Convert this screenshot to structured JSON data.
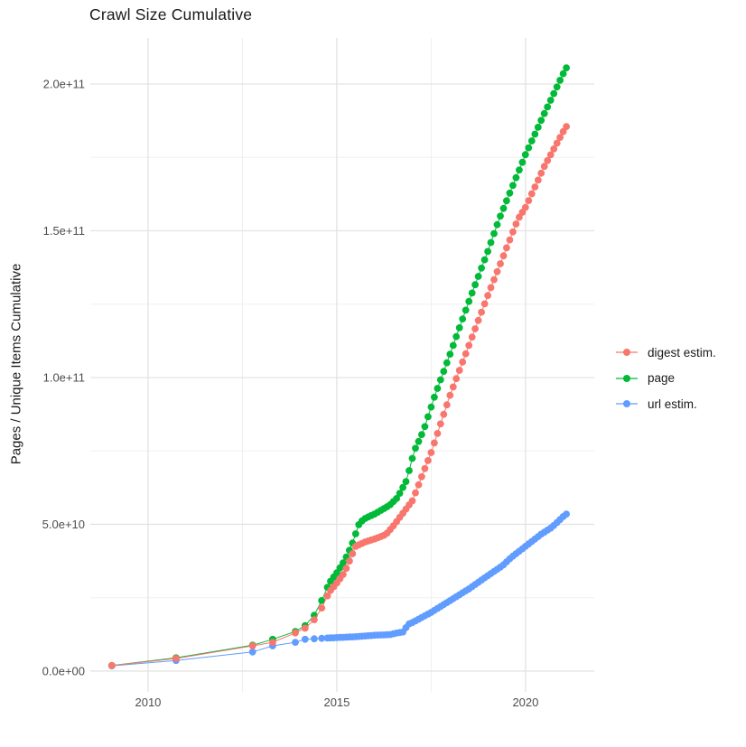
{
  "title": "Crawl Size Cumulative",
  "chart_data": {
    "type": "scatter",
    "title": "Crawl Size Cumulative",
    "xlabel": "",
    "ylabel": "Pages / Unique Items Cumulative",
    "legend_position": "right",
    "grid": "major+minor",
    "background": "#ffffff",
    "xlim": [
      2008.47,
      2021.82
    ],
    "ylim": [
      -7100000000.0,
      215700000000.0
    ],
    "x_ticks": [
      {
        "value": 2010,
        "label": "2010"
      },
      {
        "value": 2015,
        "label": "2015"
      },
      {
        "value": 2020,
        "label": "2020"
      }
    ],
    "y_ticks": [
      {
        "value": 0,
        "label": "0.0e+00"
      },
      {
        "value": 50000000000.0,
        "label": "5.0e+10"
      },
      {
        "value": 100000000000.0,
        "label": "1.0e+11"
      },
      {
        "value": 150000000000.0,
        "label": "1.5e+11"
      },
      {
        "value": 200000000000.0,
        "label": "2.0e+11"
      }
    ],
    "x_minor_ticks": [
      2012.5,
      2017.5
    ],
    "y_minor_ticks": [
      25000000000.0,
      75000000000.0,
      125000000000.0,
      175000000000.0
    ],
    "point_dates": {
      "sparse": [
        2009.04,
        2010.74,
        2012.77,
        2013.3,
        2013.9,
        2014.16,
        2014.4,
        2014.6
      ],
      "monthly_start": 2014.75,
      "monthly_end": 2021.07,
      "monthly_step": 0.0833
    },
    "series": [
      {
        "name": "digest estim.",
        "color": "#F8766D",
        "anchors": [
          [
            2009.04,
            1900000000.0
          ],
          [
            2010.74,
            4300000000.0
          ],
          [
            2012.77,
            8600000000.0
          ],
          [
            2013.3,
            9800000000.0
          ],
          [
            2013.9,
            13000000000.0
          ],
          [
            2014.16,
            14600000000.0
          ],
          [
            2014.4,
            17500000000.0
          ],
          [
            2014.6,
            21500000000.0
          ],
          [
            2014.8,
            27000000000.0
          ],
          [
            2015.0,
            30000000000.0
          ],
          [
            2015.2,
            33500000000.0
          ],
          [
            2015.5,
            42500000000.0
          ],
          [
            2015.75,
            44000000000.0
          ],
          [
            2016.0,
            45000000000.0
          ],
          [
            2016.3,
            46500000000.0
          ],
          [
            2016.5,
            49500000000.0
          ],
          [
            2016.85,
            55500000000.0
          ],
          [
            2017.0,
            58000000000.0
          ],
          [
            2017.5,
            74500000000.0
          ],
          [
            2018.0,
            94000000000.0
          ],
          [
            2018.5,
            111000000000.0
          ],
          [
            2019.0,
            128000000000.0
          ],
          [
            2019.8,
            154000000000.0
          ],
          [
            2020.0,
            158000000000.0
          ],
          [
            2020.5,
            172000000000.0
          ],
          [
            2021.07,
            185500000000.0
          ]
        ]
      },
      {
        "name": "page",
        "color": "#00BA38",
        "anchors": [
          [
            2009.04,
            1900000000.0
          ],
          [
            2010.74,
            4500000000.0
          ],
          [
            2012.77,
            8800000000.0
          ],
          [
            2013.3,
            10800000000.0
          ],
          [
            2013.9,
            13500000000.0
          ],
          [
            2014.16,
            15500000000.0
          ],
          [
            2014.4,
            19000000000.0
          ],
          [
            2014.6,
            24000000000.0
          ],
          [
            2014.8,
            30000000000.0
          ],
          [
            2015.0,
            33500000000.0
          ],
          [
            2015.2,
            37500000000.0
          ],
          [
            2015.4,
            43000000000.0
          ],
          [
            2015.6,
            50500000000.0
          ],
          [
            2015.75,
            52000000000.0
          ],
          [
            2016.0,
            53500000000.0
          ],
          [
            2016.2,
            55000000000.0
          ],
          [
            2016.4,
            56500000000.0
          ],
          [
            2016.6,
            59000000000.0
          ],
          [
            2016.85,
            65000000000.0
          ],
          [
            2017.05,
            75000000000.0
          ],
          [
            2017.3,
            82000000000.0
          ],
          [
            2017.6,
            94000000000.0
          ],
          [
            2018.0,
            108000000000.0
          ],
          [
            2018.5,
            126000000000.0
          ],
          [
            2019.0,
            143000000000.0
          ],
          [
            2019.3,
            154000000000.0
          ],
          [
            2020.0,
            176000000000.0
          ],
          [
            2020.5,
            190000000000.0
          ],
          [
            2021.07,
            205500000000.0
          ]
        ]
      },
      {
        "name": "url estim.",
        "color": "#619CFF",
        "anchors": [
          [
            2009.04,
            1800000000.0
          ],
          [
            2010.74,
            3600000000.0
          ],
          [
            2012.77,
            6500000000.0
          ],
          [
            2013.3,
            8600000000.0
          ],
          [
            2013.9,
            9800000000.0
          ],
          [
            2014.16,
            10800000000.0
          ],
          [
            2014.4,
            11000000000.0
          ],
          [
            2014.7,
            11200000000.0
          ],
          [
            2015.0,
            11400000000.0
          ],
          [
            2015.5,
            11700000000.0
          ],
          [
            2016.0,
            12200000000.0
          ],
          [
            2016.4,
            12400000000.0
          ],
          [
            2016.6,
            13000000000.0
          ],
          [
            2016.75,
            13300000000.0
          ],
          [
            2016.9,
            16000000000.0
          ],
          [
            2017.0,
            16500000000.0
          ],
          [
            2017.5,
            20000000000.0
          ],
          [
            2018.0,
            24000000000.0
          ],
          [
            2018.5,
            28000000000.0
          ],
          [
            2019.0,
            32500000000.0
          ],
          [
            2019.4,
            36000000000.0
          ],
          [
            2019.6,
            38500000000.0
          ],
          [
            2020.0,
            42500000000.0
          ],
          [
            2020.4,
            46500000000.0
          ],
          [
            2020.7,
            49000000000.0
          ],
          [
            2021.07,
            53500000000.0
          ]
        ]
      }
    ]
  }
}
